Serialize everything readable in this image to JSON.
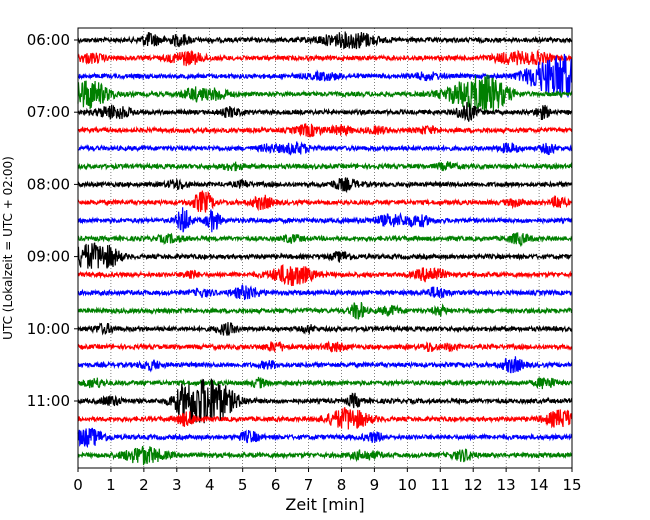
{
  "chart_data": {
    "type": "line",
    "title": "",
    "xlabel": "Zeit  [min]",
    "ylabel": "UTC (Lokalzeit = UTC + 02:00)",
    "xlim": [
      0,
      15
    ],
    "x_ticks": [
      0,
      1,
      2,
      3,
      4,
      5,
      6,
      7,
      8,
      9,
      10,
      11,
      12,
      13,
      14,
      15
    ],
    "x_tick_labels": [
      "0",
      "1",
      "2",
      "3",
      "4",
      "5",
      "6",
      "7",
      "8",
      "9",
      "10",
      "11",
      "12",
      "13",
      "14",
      "15"
    ],
    "y_tick_labels": [
      "06:00",
      "07:00",
      "08:00",
      "09:00",
      "10:00",
      "11:00"
    ],
    "grid": "vertical dotted at each minute",
    "colors_cycle": [
      "#000000",
      "#ff0000",
      "#0000ff",
      "#008000"
    ],
    "traces": [
      {
        "start": "06:00",
        "color": "black"
      },
      {
        "start": "06:15",
        "color": "red"
      },
      {
        "start": "06:30",
        "color": "blue"
      },
      {
        "start": "06:45",
        "color": "green"
      },
      {
        "start": "07:00",
        "color": "black"
      },
      {
        "start": "07:15",
        "color": "red"
      },
      {
        "start": "07:30",
        "color": "blue"
      },
      {
        "start": "07:45",
        "color": "green"
      },
      {
        "start": "08:00",
        "color": "black"
      },
      {
        "start": "08:15",
        "color": "red"
      },
      {
        "start": "08:30",
        "color": "blue"
      },
      {
        "start": "08:45",
        "color": "green"
      },
      {
        "start": "09:00",
        "color": "black"
      },
      {
        "start": "09:15",
        "color": "red"
      },
      {
        "start": "09:30",
        "color": "blue"
      },
      {
        "start": "09:45",
        "color": "green"
      },
      {
        "start": "10:00",
        "color": "black"
      },
      {
        "start": "10:15",
        "color": "red"
      },
      {
        "start": "10:30",
        "color": "blue"
      },
      {
        "start": "10:45",
        "color": "green"
      },
      {
        "start": "11:00",
        "color": "black"
      },
      {
        "start": "11:15",
        "color": "red"
      },
      {
        "start": "11:30",
        "color": "blue"
      },
      {
        "start": "11:45",
        "color": "green"
      }
    ]
  }
}
